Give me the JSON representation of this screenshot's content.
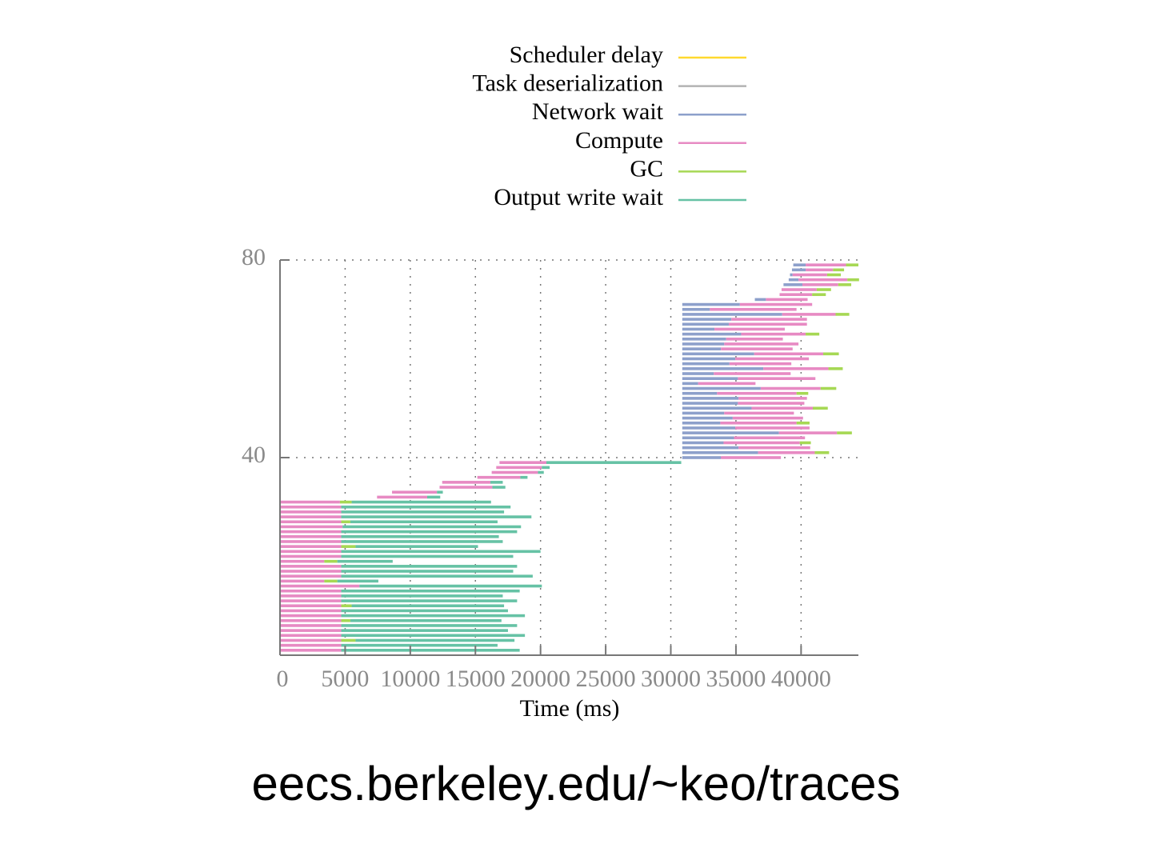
{
  "chart_data": {
    "type": "bar",
    "subtype": "task-timeline",
    "xlabel": "Time (ms)",
    "ylabel": "",
    "xlim": [
      0,
      44400
    ],
    "ylim": [
      0,
      80
    ],
    "x_ticks": [
      "0",
      "5000",
      "10000",
      "15000",
      "20000",
      "25000",
      "30000",
      "35000",
      "40000"
    ],
    "x_tick_values": [
      0,
      5000,
      10000,
      15000,
      20000,
      25000,
      30000,
      35000,
      40000
    ],
    "y_ticks": [
      "40",
      "80"
    ],
    "y_tick_values": [
      40,
      80
    ],
    "grid": true,
    "legend_placement": "top",
    "legend": [
      {
        "name": "Scheduler delay",
        "color": "#ffd92f"
      },
      {
        "name": "Task deserialization",
        "color": "#b3b3b3"
      },
      {
        "name": "Network wait",
        "color": "#8da0cb"
      },
      {
        "name": "Compute",
        "color": "#e78ac3"
      },
      {
        "name": "GC",
        "color": "#a6d854"
      },
      {
        "name": "Output write wait",
        "color": "#66c2a5"
      }
    ],
    "task_columns": [
      "task",
      "start",
      "network_wait_end",
      "compute_end",
      "gc_end",
      "output_write_wait_end"
    ],
    "tasks": [
      [
        1,
        0,
        0,
        4700,
        4700,
        18400
      ],
      [
        2,
        0,
        0,
        4700,
        4700,
        16700
      ],
      [
        3,
        0,
        0,
        4700,
        5800,
        18000
      ],
      [
        4,
        0,
        0,
        4700,
        4700,
        18800
      ],
      [
        5,
        0,
        0,
        4700,
        4700,
        17500
      ],
      [
        6,
        0,
        0,
        4700,
        4700,
        18200
      ],
      [
        7,
        0,
        0,
        4700,
        5400,
        17000
      ],
      [
        8,
        0,
        0,
        4700,
        4700,
        18800
      ],
      [
        9,
        0,
        0,
        4700,
        4700,
        17500
      ],
      [
        10,
        0,
        0,
        4700,
        5500,
        17200
      ],
      [
        11,
        0,
        0,
        4700,
        4700,
        18200
      ],
      [
        12,
        0,
        0,
        4700,
        4700,
        17100
      ],
      [
        13,
        0,
        0,
        4700,
        4700,
        18400
      ],
      [
        14,
        0,
        0,
        6100,
        6100,
        20100
      ],
      [
        15,
        0,
        0,
        3400,
        4400,
        7550
      ],
      [
        16,
        0,
        0,
        4700,
        4700,
        19400
      ],
      [
        17,
        0,
        0,
        4700,
        4700,
        17900
      ],
      [
        18,
        0,
        0,
        4700,
        4700,
        18200
      ],
      [
        19,
        0,
        0,
        3400,
        4400,
        8650
      ],
      [
        20,
        0,
        0,
        4700,
        4700,
        17900
      ],
      [
        21,
        0,
        0,
        4700,
        4700,
        20000
      ],
      [
        22,
        0,
        0,
        4700,
        5800,
        15200
      ],
      [
        23,
        0,
        0,
        4700,
        4700,
        17100
      ],
      [
        24,
        0,
        0,
        4700,
        4700,
        16800
      ],
      [
        25,
        0,
        0,
        4700,
        4700,
        18200
      ],
      [
        26,
        0,
        0,
        4800,
        4800,
        18500
      ],
      [
        27,
        0,
        0,
        4700,
        5400,
        16700
      ],
      [
        28,
        0,
        0,
        4700,
        4700,
        19300
      ],
      [
        29,
        0,
        0,
        4700,
        4700,
        17200
      ],
      [
        30,
        0,
        0,
        4700,
        4700,
        17700
      ],
      [
        31,
        0,
        0,
        4600,
        5500,
        16200
      ],
      [
        32,
        7450,
        7450,
        11300,
        11300,
        12300
      ],
      [
        33,
        8600,
        8600,
        12050,
        12050,
        12500
      ],
      [
        34,
        12250,
        12250,
        16300,
        16300,
        17300
      ],
      [
        35,
        12450,
        12450,
        16150,
        16150,
        17100
      ],
      [
        36,
        15150,
        15150,
        18450,
        18450,
        19000
      ],
      [
        37,
        16250,
        16250,
        19800,
        19800,
        20250
      ],
      [
        38,
        16600,
        16600,
        20100,
        20100,
        20700
      ],
      [
        39,
        16850,
        16850,
        20450,
        20450,
        30800
      ],
      [
        40,
        30880,
        33850,
        38450,
        38450,
        38450
      ],
      [
        41,
        30880,
        36700,
        41050,
        42150,
        42150
      ],
      [
        42,
        30880,
        35200,
        40700,
        40700,
        40700
      ],
      [
        43,
        30880,
        34050,
        39900,
        40750,
        40750
      ],
      [
        44,
        30880,
        34850,
        40300,
        40300,
        40300
      ],
      [
        45,
        30880,
        38300,
        42750,
        43900,
        43900
      ],
      [
        46,
        30880,
        34950,
        40650,
        40650,
        40650
      ],
      [
        47,
        30880,
        33800,
        39650,
        40650,
        40650
      ],
      [
        48,
        30880,
        34750,
        40150,
        40150,
        40150
      ],
      [
        49,
        30880,
        34100,
        39450,
        39450,
        39450
      ],
      [
        50,
        30880,
        36200,
        40900,
        42050,
        42050
      ],
      [
        51,
        30880,
        35150,
        40250,
        40250,
        40250
      ],
      [
        52,
        30880,
        35200,
        40450,
        40450,
        40450
      ],
      [
        53,
        30880,
        33550,
        39650,
        40550,
        40550
      ],
      [
        54,
        30880,
        36900,
        41500,
        42700,
        42700
      ],
      [
        55,
        30880,
        32100,
        36500,
        36500,
        36500
      ],
      [
        56,
        30880,
        35150,
        41100,
        41100,
        41100
      ],
      [
        57,
        30880,
        33300,
        39200,
        39200,
        39200
      ],
      [
        58,
        30880,
        37100,
        42100,
        43200,
        43200
      ],
      [
        59,
        30880,
        34500,
        39250,
        39250,
        39250
      ],
      [
        60,
        30880,
        34950,
        40600,
        40600,
        40600
      ],
      [
        61,
        30880,
        36400,
        41700,
        42900,
        42900
      ],
      [
        62,
        30880,
        33850,
        39350,
        39350,
        39350
      ],
      [
        63,
        30880,
        34100,
        39800,
        39800,
        39800
      ],
      [
        64,
        30880,
        34250,
        38600,
        38600,
        38600
      ],
      [
        65,
        30880,
        35400,
        40350,
        41400,
        41400
      ],
      [
        66,
        30880,
        33350,
        38750,
        38750,
        38750
      ],
      [
        67,
        30880,
        34450,
        40450,
        40450,
        40450
      ],
      [
        68,
        30880,
        34650,
        40450,
        40450,
        40450
      ],
      [
        69,
        30880,
        38550,
        42650,
        43700,
        43700
      ],
      [
        70,
        30880,
        33000,
        39650,
        39650,
        39650
      ],
      [
        71,
        30880,
        35300,
        40850,
        40850,
        40850
      ],
      [
        72,
        36450,
        37300,
        40500,
        40500,
        40500
      ],
      [
        73,
        38350,
        38350,
        40850,
        41900,
        41900
      ],
      [
        74,
        38500,
        38500,
        41200,
        42300,
        42300
      ],
      [
        75,
        38650,
        40100,
        42850,
        43850,
        43850
      ],
      [
        76,
        39050,
        39800,
        43550,
        44450,
        44450
      ],
      [
        77,
        39150,
        39350,
        42000,
        43050,
        43050
      ],
      [
        78,
        39300,
        40350,
        42450,
        43300,
        43300
      ],
      [
        79,
        39400,
        40350,
        43450,
        44400,
        44400
      ]
    ]
  },
  "footer": {
    "url": "eecs.berkeley.edu/~keo/traces"
  }
}
